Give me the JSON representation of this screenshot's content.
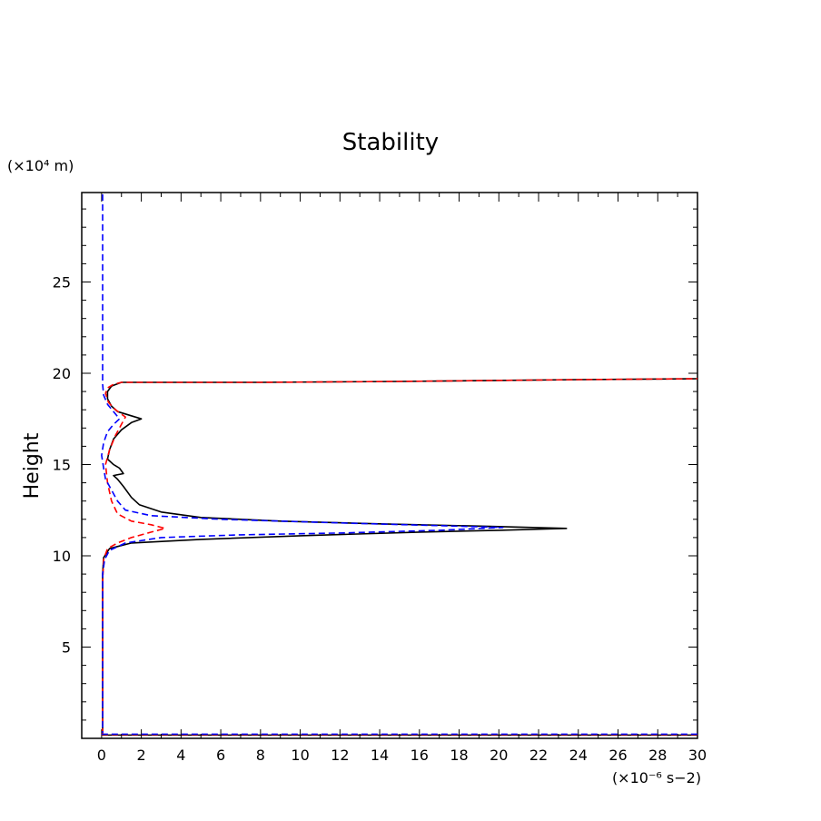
{
  "chart_data": {
    "type": "line",
    "title": "Stability",
    "xlabel": "",
    "ylabel": "Height",
    "x_unit": "(×10⁻⁶ s−2)",
    "y_unit": "(×10⁴ m)",
    "xlim": [
      -1,
      30
    ],
    "ylim": [
      0,
      29.9
    ],
    "x_ticks": [
      0,
      2,
      4,
      6,
      8,
      10,
      12,
      14,
      16,
      18,
      20,
      22,
      24,
      26,
      28,
      30
    ],
    "y_ticks": [
      5,
      10,
      15,
      20,
      25
    ],
    "grid": false,
    "legend": "none",
    "series": [
      {
        "color": "#000000",
        "dash": "solid",
        "points": [
          [
            0.05,
            0.2
          ],
          [
            0.05,
            5
          ],
          [
            0.05,
            9.0
          ],
          [
            0.1,
            9.9
          ],
          [
            0.4,
            10.4
          ],
          [
            1.5,
            10.7
          ],
          [
            5,
            10.9
          ],
          [
            10,
            11.1
          ],
          [
            16,
            11.3
          ],
          [
            20,
            11.4
          ],
          [
            23.4,
            11.5
          ],
          [
            20,
            11.6
          ],
          [
            14,
            11.75
          ],
          [
            9,
            11.9
          ],
          [
            5,
            12.1
          ],
          [
            3,
            12.4
          ],
          [
            1.9,
            12.8
          ],
          [
            1.5,
            13.2
          ],
          [
            1.1,
            13.8
          ],
          [
            0.8,
            14.2
          ],
          [
            0.6,
            14.4
          ],
          [
            1.1,
            14.5
          ],
          [
            0.9,
            14.8
          ],
          [
            0.6,
            15.0
          ],
          [
            0.3,
            15.3
          ],
          [
            0.4,
            15.8
          ],
          [
            0.6,
            16.4
          ],
          [
            1.0,
            16.9
          ],
          [
            1.5,
            17.3
          ],
          [
            2.0,
            17.5
          ],
          [
            1.4,
            17.7
          ],
          [
            0.8,
            17.9
          ],
          [
            0.5,
            18.2
          ],
          [
            0.3,
            18.6
          ],
          [
            0.3,
            19.0
          ],
          [
            0.5,
            19.3
          ],
          [
            1.0,
            19.5
          ],
          [
            8,
            19.5
          ],
          [
            15,
            19.55
          ],
          [
            24,
            19.65
          ],
          [
            30,
            19.7
          ]
        ]
      },
      {
        "color": "#ff0000",
        "dash": "dashed",
        "points": [
          [
            0.05,
            0.2
          ],
          [
            0.05,
            5
          ],
          [
            0.05,
            8.5
          ],
          [
            0.1,
            9.8
          ],
          [
            0.3,
            10.4
          ],
          [
            0.8,
            10.7
          ],
          [
            1.5,
            11.0
          ],
          [
            2.5,
            11.3
          ],
          [
            3.2,
            11.5
          ],
          [
            2.5,
            11.7
          ],
          [
            1.5,
            11.9
          ],
          [
            0.8,
            12.3
          ],
          [
            0.5,
            13.0
          ],
          [
            0.3,
            14.0
          ],
          [
            0.2,
            15.0
          ],
          [
            0.4,
            15.8
          ],
          [
            0.7,
            16.6
          ],
          [
            1.0,
            17.2
          ],
          [
            1.2,
            17.6
          ],
          [
            0.7,
            18.0
          ],
          [
            0.35,
            18.4
          ],
          [
            0.2,
            18.9
          ],
          [
            0.3,
            19.2
          ],
          [
            0.6,
            19.4
          ],
          [
            1.0,
            19.5
          ],
          [
            8,
            19.5
          ],
          [
            15,
            19.55
          ],
          [
            24,
            19.65
          ],
          [
            30,
            19.7
          ]
        ]
      },
      {
        "color": "#0000ff",
        "dash": "dashed",
        "points": [
          [
            0.05,
            29.8
          ],
          [
            0.05,
            22
          ],
          [
            0.05,
            19.4
          ],
          [
            0.1,
            18.8
          ],
          [
            0.3,
            18.3
          ],
          [
            0.6,
            17.9
          ],
          [
            0.9,
            17.5
          ],
          [
            0.6,
            17.2
          ],
          [
            0.3,
            16.8
          ],
          [
            0.1,
            16.2
          ],
          [
            0.0,
            15.5
          ],
          [
            0.1,
            14.8
          ],
          [
            0.2,
            14.2
          ],
          [
            0.5,
            13.6
          ],
          [
            0.8,
            13.0
          ],
          [
            1.2,
            12.5
          ],
          [
            2.5,
            12.2
          ],
          [
            6,
            12.0
          ],
          [
            12,
            11.8
          ],
          [
            17,
            11.65
          ],
          [
            20.2,
            11.55
          ],
          [
            17,
            11.4
          ],
          [
            12,
            11.25
          ],
          [
            7,
            11.15
          ],
          [
            3,
            11.0
          ],
          [
            1.2,
            10.7
          ],
          [
            0.4,
            10.3
          ],
          [
            0.15,
            9.8
          ],
          [
            0.05,
            9.0
          ],
          [
            0.05,
            5
          ],
          [
            0.05,
            0.3
          ]
        ]
      }
    ],
    "baseline": {
      "y": 0.18,
      "x_range": [
        0,
        30
      ]
    }
  }
}
